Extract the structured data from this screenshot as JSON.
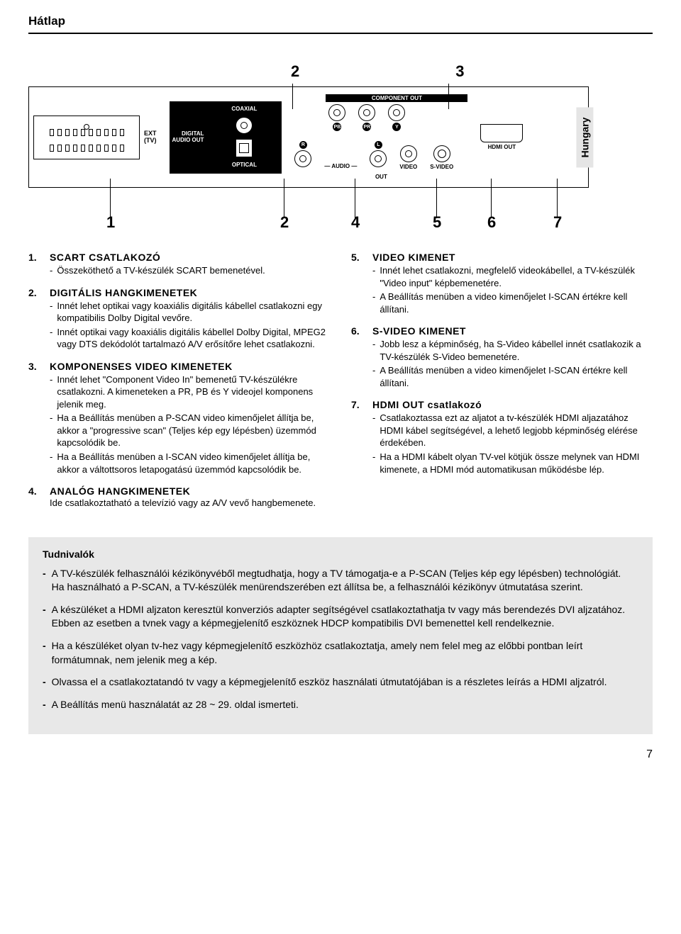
{
  "page_title": "Hátlap",
  "side_tab": "Hungary",
  "page_number": "7",
  "diagram": {
    "top_callouts": [
      "2",
      "3"
    ],
    "bottom_callouts": [
      "1",
      "2",
      "4",
      "5",
      "6",
      "7"
    ],
    "ext_label_line1": "EXT",
    "ext_label_line2": "(TV)",
    "digital_audio_label": "DIGITAL\nAUDIO OUT",
    "coaxial": "COAXIAL",
    "optical": "OPTICAL",
    "component_out": "COMPONENT OUT",
    "pb": "PB",
    "pr": "PR",
    "y": "Y",
    "audio_r": "R",
    "audio_l": "L",
    "audio": "AUDIO",
    "video": "VIDEO",
    "svideo": "S-VIDEO",
    "out": "OUT",
    "hdmi_out": "HDMI OUT"
  },
  "items_left": [
    {
      "num": "1.",
      "title": "SCART CSATLAKOZÓ",
      "bullets": [
        "Összeköthető a TV-készülék SCART bemenetével."
      ]
    },
    {
      "num": "2.",
      "title": "DIGITÁLIS HANGKIMENETEK",
      "bullets": [
        "Innét lehet optikai vagy koaxiális digitális kábellel csatlakozni egy kompatibilis Dolby Digital vevőre.",
        "Innét optikai vagy koaxiális digitális kábellel Dolby Digital, MPEG2 vagy DTS dekódolót tartalmazó A/V erősítőre lehet csatlakozni."
      ]
    },
    {
      "num": "3.",
      "title": "KOMPONENSES VIDEO KIMENETEK",
      "bullets": [
        "Innét lehet \"Component Video In\" bemenetű TV-készülékre csatlakozni. A kimeneteken a PR, PB és Y videojel komponens jelenik meg.",
        "Ha a Beállítás menüben a P-SCAN video kimenőjelet állítja be, akkor a \"progressive scan\" (Teljes kép egy lépésben) üzemmód kapcsolódik be.",
        "Ha a Beállítás menüben a I-SCAN video kimenőjelet állítja be, akkor a váltottsoros letapogatású üzemmód kapcsolódik be."
      ]
    },
    {
      "num": "4.",
      "title": "ANALÓG HANGKIMENETEK",
      "plain": "Ide csatlakoztatható a televízió vagy az A/V vevő hangbemenete."
    }
  ],
  "items_right": [
    {
      "num": "5.",
      "title": "VIDEO KIMENET",
      "bullets": [
        "Innét lehet csatlakozni, megfelelő videokábellel, a TV-készülék \"Video input\" képbemenetére.",
        "A Beállítás menüben a video kimenőjelet I-SCAN értékre kell állítani."
      ]
    },
    {
      "num": "6.",
      "title": "S-VIDEO KIMENET",
      "bullets": [
        "Jobb lesz a képminőség, ha S-Video kábellel innét csatlakozik a TV-készülék S-Video bemenetére.",
        "A Beállítás menüben a video kimenőjelet I-SCAN értékre kell állítani."
      ]
    },
    {
      "num": "7.",
      "title": "HDMI OUT csatlakozó",
      "bullets": [
        "Csatlakoztassa ezt az aljatot a tv-készülék HDMI aljazatához HDMI kábel segítségével, a lehető legjobb képminőség elérése érdekében.",
        "Ha a HDMI kábelt olyan TV-vel kötjük össze melynek van HDMI kimenete, a HDMI mód automatikusan működésbe lép."
      ]
    }
  ],
  "notes_title": "Tudnivalók",
  "notes": [
    "A TV-készülék felhasználói kézikönyvéből megtudhatja, hogy a TV támogatja-e a P-SCAN (Teljes kép egy lépésben) technológiát.\nHa használható a P-SCAN, a TV-készülék menürendszerében ezt állítsa be, a felhasználói kézikönyv útmutatása szerint.",
    "A készüléket a HDMI aljzaton keresztül konverziós adapter segítségével csatlakoztathatja tv vagy más berendezés DVI aljzatához. Ebben az esetben a tvnek vagy a képmegjelenítő eszköznek HDCP kompatibilis DVI bemenettel kell rendelkeznie.",
    "Ha a készüléket olyan tv-hez vagy képmegjelenítő eszközhöz csatlakoztatja, amely nem felel meg az előbbi pontban leírt formátumnak, nem jelenik meg a kép.",
    "Olvassa el a csatlakoztatandó tv vagy a képmegjelenítő eszköz használati útmutatójában is a részletes leírás a HDMI aljzatról.",
    "A Beállítás menü használatát az 28 ~ 29. oldal ismerteti."
  ]
}
